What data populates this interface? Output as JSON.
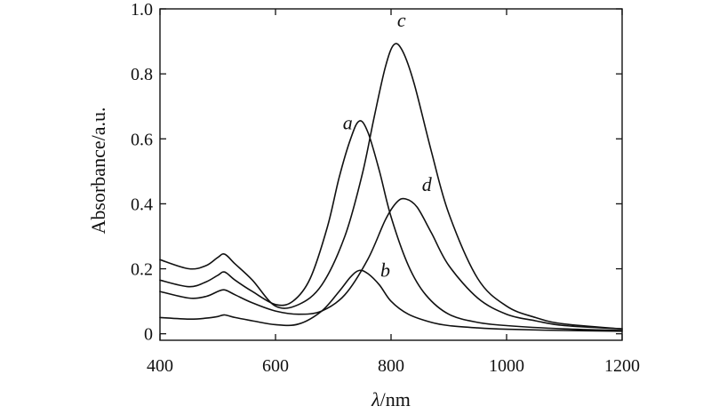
{
  "chart_data": {
    "type": "line",
    "title": "",
    "xlabel_symbol": "λ",
    "xlabel_unit": "/nm",
    "ylabel": "Absorbance/a.u.",
    "xlim": [
      400,
      1200
    ],
    "ylim": [
      -0.02,
      1.0
    ],
    "x_ticks": [
      400,
      600,
      800,
      1000,
      1200
    ],
    "y_ticks": [
      0,
      0.2,
      0.4,
      0.6,
      0.8,
      1.0
    ],
    "x_tick_labels": [
      "400",
      "600",
      "800",
      "1000",
      "1200"
    ],
    "y_tick_labels": [
      "0",
      "0.2",
      "0.4",
      "0.6",
      "0.8",
      "1.0"
    ],
    "grid": false,
    "series": [
      {
        "name": "a",
        "x": [
          400,
          450,
          480,
          500,
          512,
          530,
          560,
          600,
          630,
          660,
          690,
          710,
          730,
          745,
          760,
          780,
          800,
          830,
          860,
          900,
          950,
          1000,
          1100,
          1200
        ],
        "values": [
          0.165,
          0.145,
          0.16,
          0.18,
          0.19,
          0.165,
          0.13,
          0.09,
          0.1,
          0.17,
          0.33,
          0.48,
          0.6,
          0.655,
          0.62,
          0.5,
          0.36,
          0.21,
          0.12,
          0.06,
          0.035,
          0.025,
          0.015,
          0.01
        ]
      },
      {
        "name": "b",
        "x": [
          400,
          450,
          480,
          500,
          512,
          530,
          560,
          600,
          640,
          680,
          710,
          730,
          745,
          760,
          780,
          800,
          830,
          870,
          900,
          950,
          1000,
          1100,
          1200
        ],
        "values": [
          0.05,
          0.045,
          0.048,
          0.053,
          0.058,
          0.05,
          0.04,
          0.028,
          0.03,
          0.07,
          0.13,
          0.175,
          0.195,
          0.185,
          0.15,
          0.1,
          0.06,
          0.035,
          0.025,
          0.018,
          0.014,
          0.01,
          0.008
        ]
      },
      {
        "name": "c",
        "x": [
          400,
          450,
          480,
          500,
          512,
          530,
          560,
          600,
          640,
          680,
          720,
          750,
          770,
          790,
          805,
          820,
          840,
          870,
          900,
          950,
          1000,
          1050,
          1100,
          1200
        ],
        "values": [
          0.228,
          0.2,
          0.21,
          0.235,
          0.245,
          0.215,
          0.165,
          0.085,
          0.09,
          0.15,
          0.3,
          0.49,
          0.66,
          0.82,
          0.89,
          0.87,
          0.77,
          0.56,
          0.37,
          0.17,
          0.085,
          0.05,
          0.03,
          0.015
        ]
      },
      {
        "name": "d",
        "x": [
          400,
          450,
          480,
          500,
          512,
          530,
          560,
          600,
          640,
          680,
          720,
          760,
          790,
          810,
          825,
          845,
          870,
          900,
          950,
          1000,
          1050,
          1100,
          1200
        ],
        "values": [
          0.13,
          0.11,
          0.115,
          0.13,
          0.135,
          0.12,
          0.095,
          0.07,
          0.06,
          0.07,
          0.12,
          0.23,
          0.35,
          0.405,
          0.415,
          0.39,
          0.31,
          0.21,
          0.11,
          0.06,
          0.04,
          0.025,
          0.015
        ]
      }
    ],
    "annotations": [
      {
        "text": "a",
        "x": 725,
        "y": 0.63
      },
      {
        "text": "b",
        "x": 790,
        "y": 0.175
      },
      {
        "text": "c",
        "x": 818,
        "y": 0.945
      },
      {
        "text": "d",
        "x": 862,
        "y": 0.44
      }
    ]
  }
}
